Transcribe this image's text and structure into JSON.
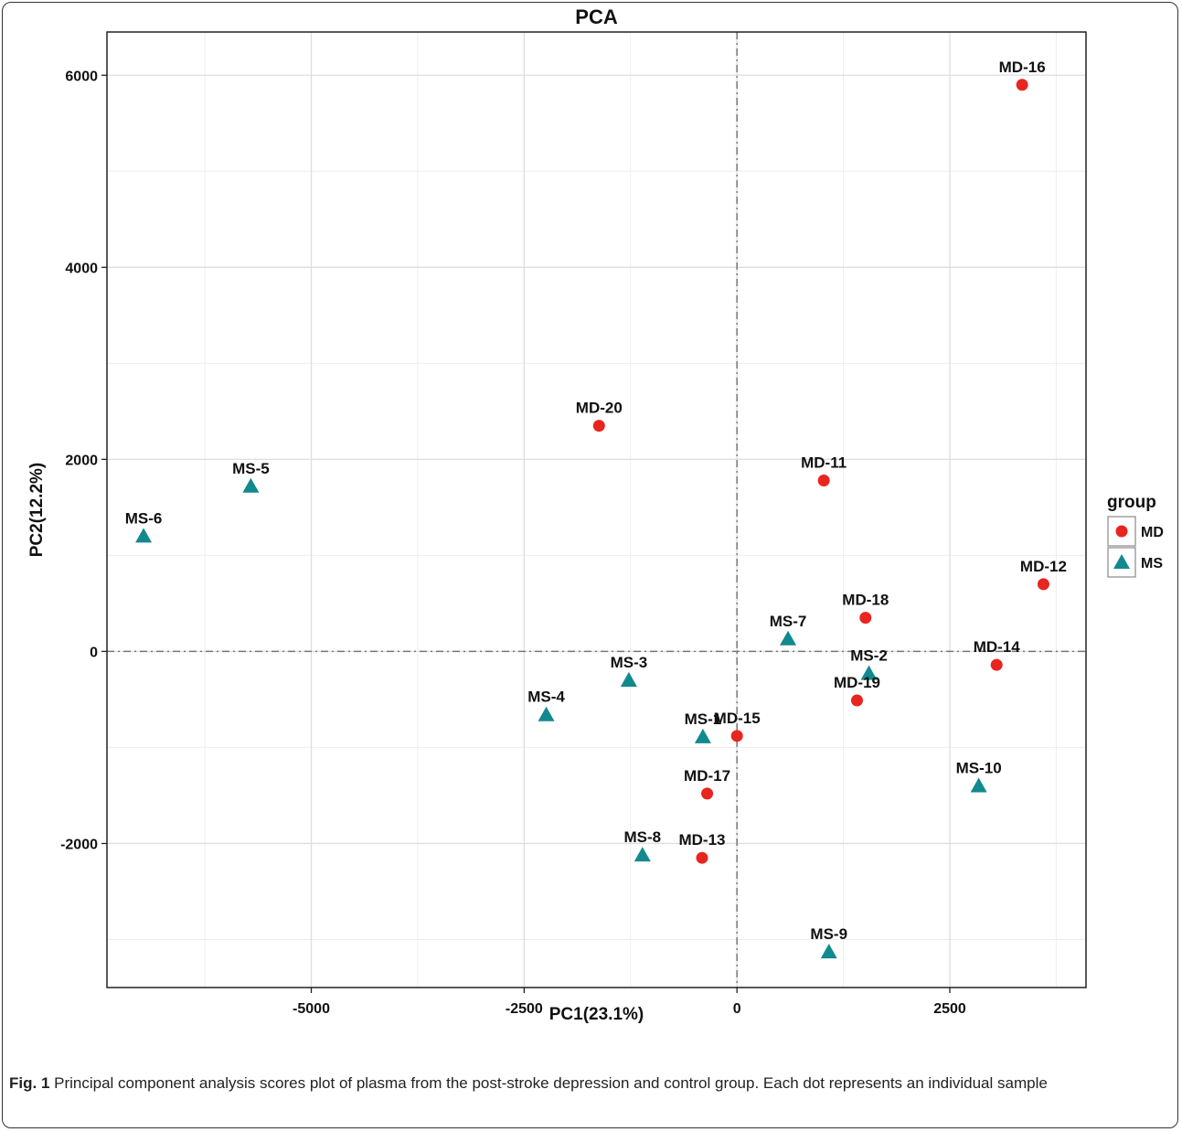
{
  "chart_data": {
    "type": "scatter",
    "title": "PCA",
    "xlabel": "PC1(23.1%)",
    "ylabel": "PC2(12.2%)",
    "xlim": [
      -7400,
      4100
    ],
    "ylim": [
      -3500,
      6450
    ],
    "x_ticks": [
      -5000,
      -2500,
      0,
      2500
    ],
    "x_tick_labels": [
      "-5000",
      "-2500",
      "0",
      "2500"
    ],
    "y_ticks": [
      -2000,
      0,
      2000,
      4000,
      6000
    ],
    "y_tick_labels": [
      "-2000",
      "0",
      "2000",
      "4000",
      "6000"
    ],
    "grid": true,
    "reference_lines": {
      "x": 0,
      "y": 0,
      "style": "dash-dot"
    },
    "legend": {
      "title": "group",
      "position": "right"
    },
    "series": [
      {
        "name": "MD",
        "marker": "circle",
        "color": "#e8251f",
        "points": [
          {
            "label": "MD-16",
            "x": 3350,
            "y": 5900
          },
          {
            "label": "MD-20",
            "x": -1620,
            "y": 2350
          },
          {
            "label": "MD-11",
            "x": 1020,
            "y": 1780
          },
          {
            "label": "MD-12",
            "x": 3600,
            "y": 700
          },
          {
            "label": "MD-18",
            "x": 1510,
            "y": 350
          },
          {
            "label": "MD-14",
            "x": 3050,
            "y": -140
          },
          {
            "label": "MD-19",
            "x": 1410,
            "y": -510
          },
          {
            "label": "MD-15",
            "x": 0,
            "y": -880
          },
          {
            "label": "MD-17",
            "x": -350,
            "y": -1480
          },
          {
            "label": "MD-13",
            "x": -410,
            "y": -2150
          }
        ]
      },
      {
        "name": "MS",
        "marker": "triangle",
        "color": "#12898e",
        "points": [
          {
            "label": "MS-5",
            "x": -5710,
            "y": 1720
          },
          {
            "label": "MS-6",
            "x": -6970,
            "y": 1200
          },
          {
            "label": "MS-7",
            "x": 600,
            "y": 130
          },
          {
            "label": "MS-2",
            "x": 1550,
            "y": -230
          },
          {
            "label": "MS-3",
            "x": -1270,
            "y": -300
          },
          {
            "label": "MS-4",
            "x": -2240,
            "y": -660
          },
          {
            "label": "MS-1",
            "x": -400,
            "y": -890
          },
          {
            "label": "MS-10",
            "x": 2840,
            "y": -1400
          },
          {
            "label": "MS-8",
            "x": -1110,
            "y": -2120
          },
          {
            "label": "MS-9",
            "x": 1080,
            "y": -3130
          }
        ]
      }
    ]
  },
  "caption": {
    "label": "Fig. 1",
    "text": " Principal component analysis scores plot of plasma from the post-stroke depression and control group. Each dot represents an individual sample"
  }
}
